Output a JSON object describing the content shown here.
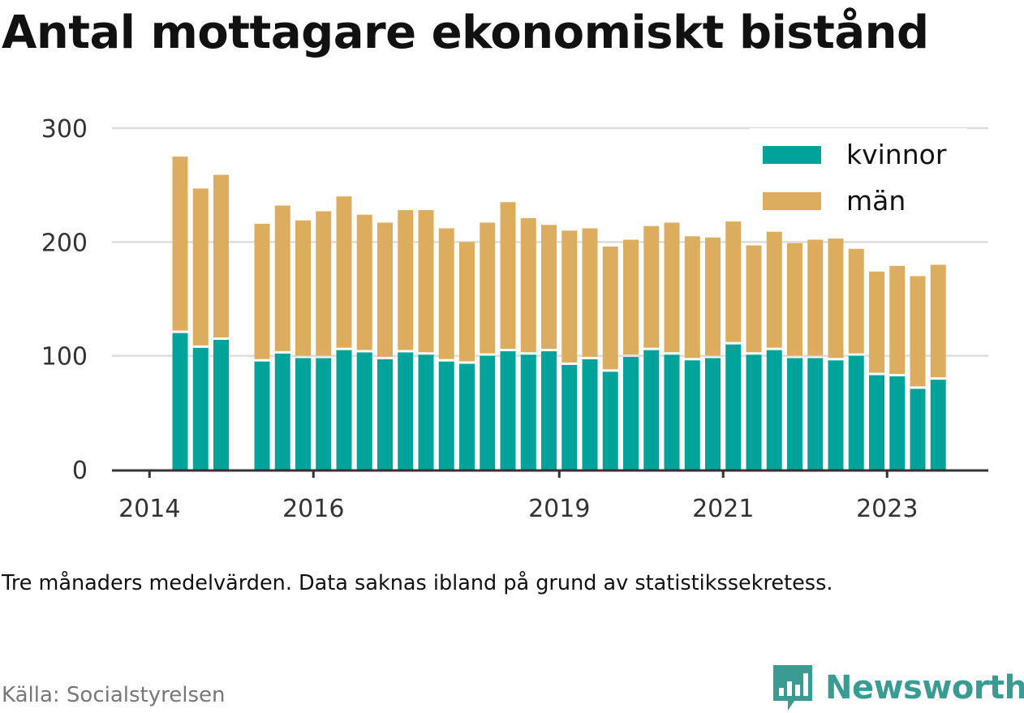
{
  "title": "Antal mottagare ekonomiskt bistånd",
  "note": "Tre månaders medelvärden. Data saknas ibland på grund av statistikssekretess.",
  "source": "Källa: Socialstyrelsen",
  "brand": {
    "name": "Newsworthy",
    "icon": "newsworthy-logo-icon"
  },
  "colors": {
    "kvinnor": "#00a39a",
    "man": "#dcad5e",
    "grid": "#dddddd",
    "axis": "#333333",
    "brand": "#3a9b93"
  },
  "chart_data": {
    "type": "bar",
    "stacked": true,
    "ylim": [
      0,
      300
    ],
    "yticks": [
      0,
      100,
      200,
      300
    ],
    "xticks": [
      "2014",
      "2016",
      "2019",
      "2021",
      "2023"
    ],
    "legend_position": "top-right",
    "grid": true,
    "series": [
      {
        "name": "kvinnor",
        "color": "#00a39a",
        "values": [
          120,
          107,
          114,
          null,
          95,
          102,
          98,
          98,
          105,
          103,
          97,
          103,
          101,
          95,
          93,
          100,
          104,
          101,
          104,
          92,
          97,
          86,
          99,
          105,
          101,
          96,
          98,
          110,
          101,
          105,
          98,
          98,
          96,
          100,
          83,
          82,
          71,
          79
        ]
      },
      {
        "name": "män",
        "color": "#dcad5e",
        "values": [
          155,
          140,
          145,
          null,
          121,
          130,
          121,
          129,
          135,
          121,
          120,
          125,
          127,
          117,
          107,
          117,
          131,
          120,
          111,
          118,
          115,
          110,
          103,
          109,
          116,
          109,
          106,
          108,
          96,
          104,
          101,
          104,
          107,
          94,
          91,
          97,
          99,
          101
        ]
      }
    ]
  }
}
